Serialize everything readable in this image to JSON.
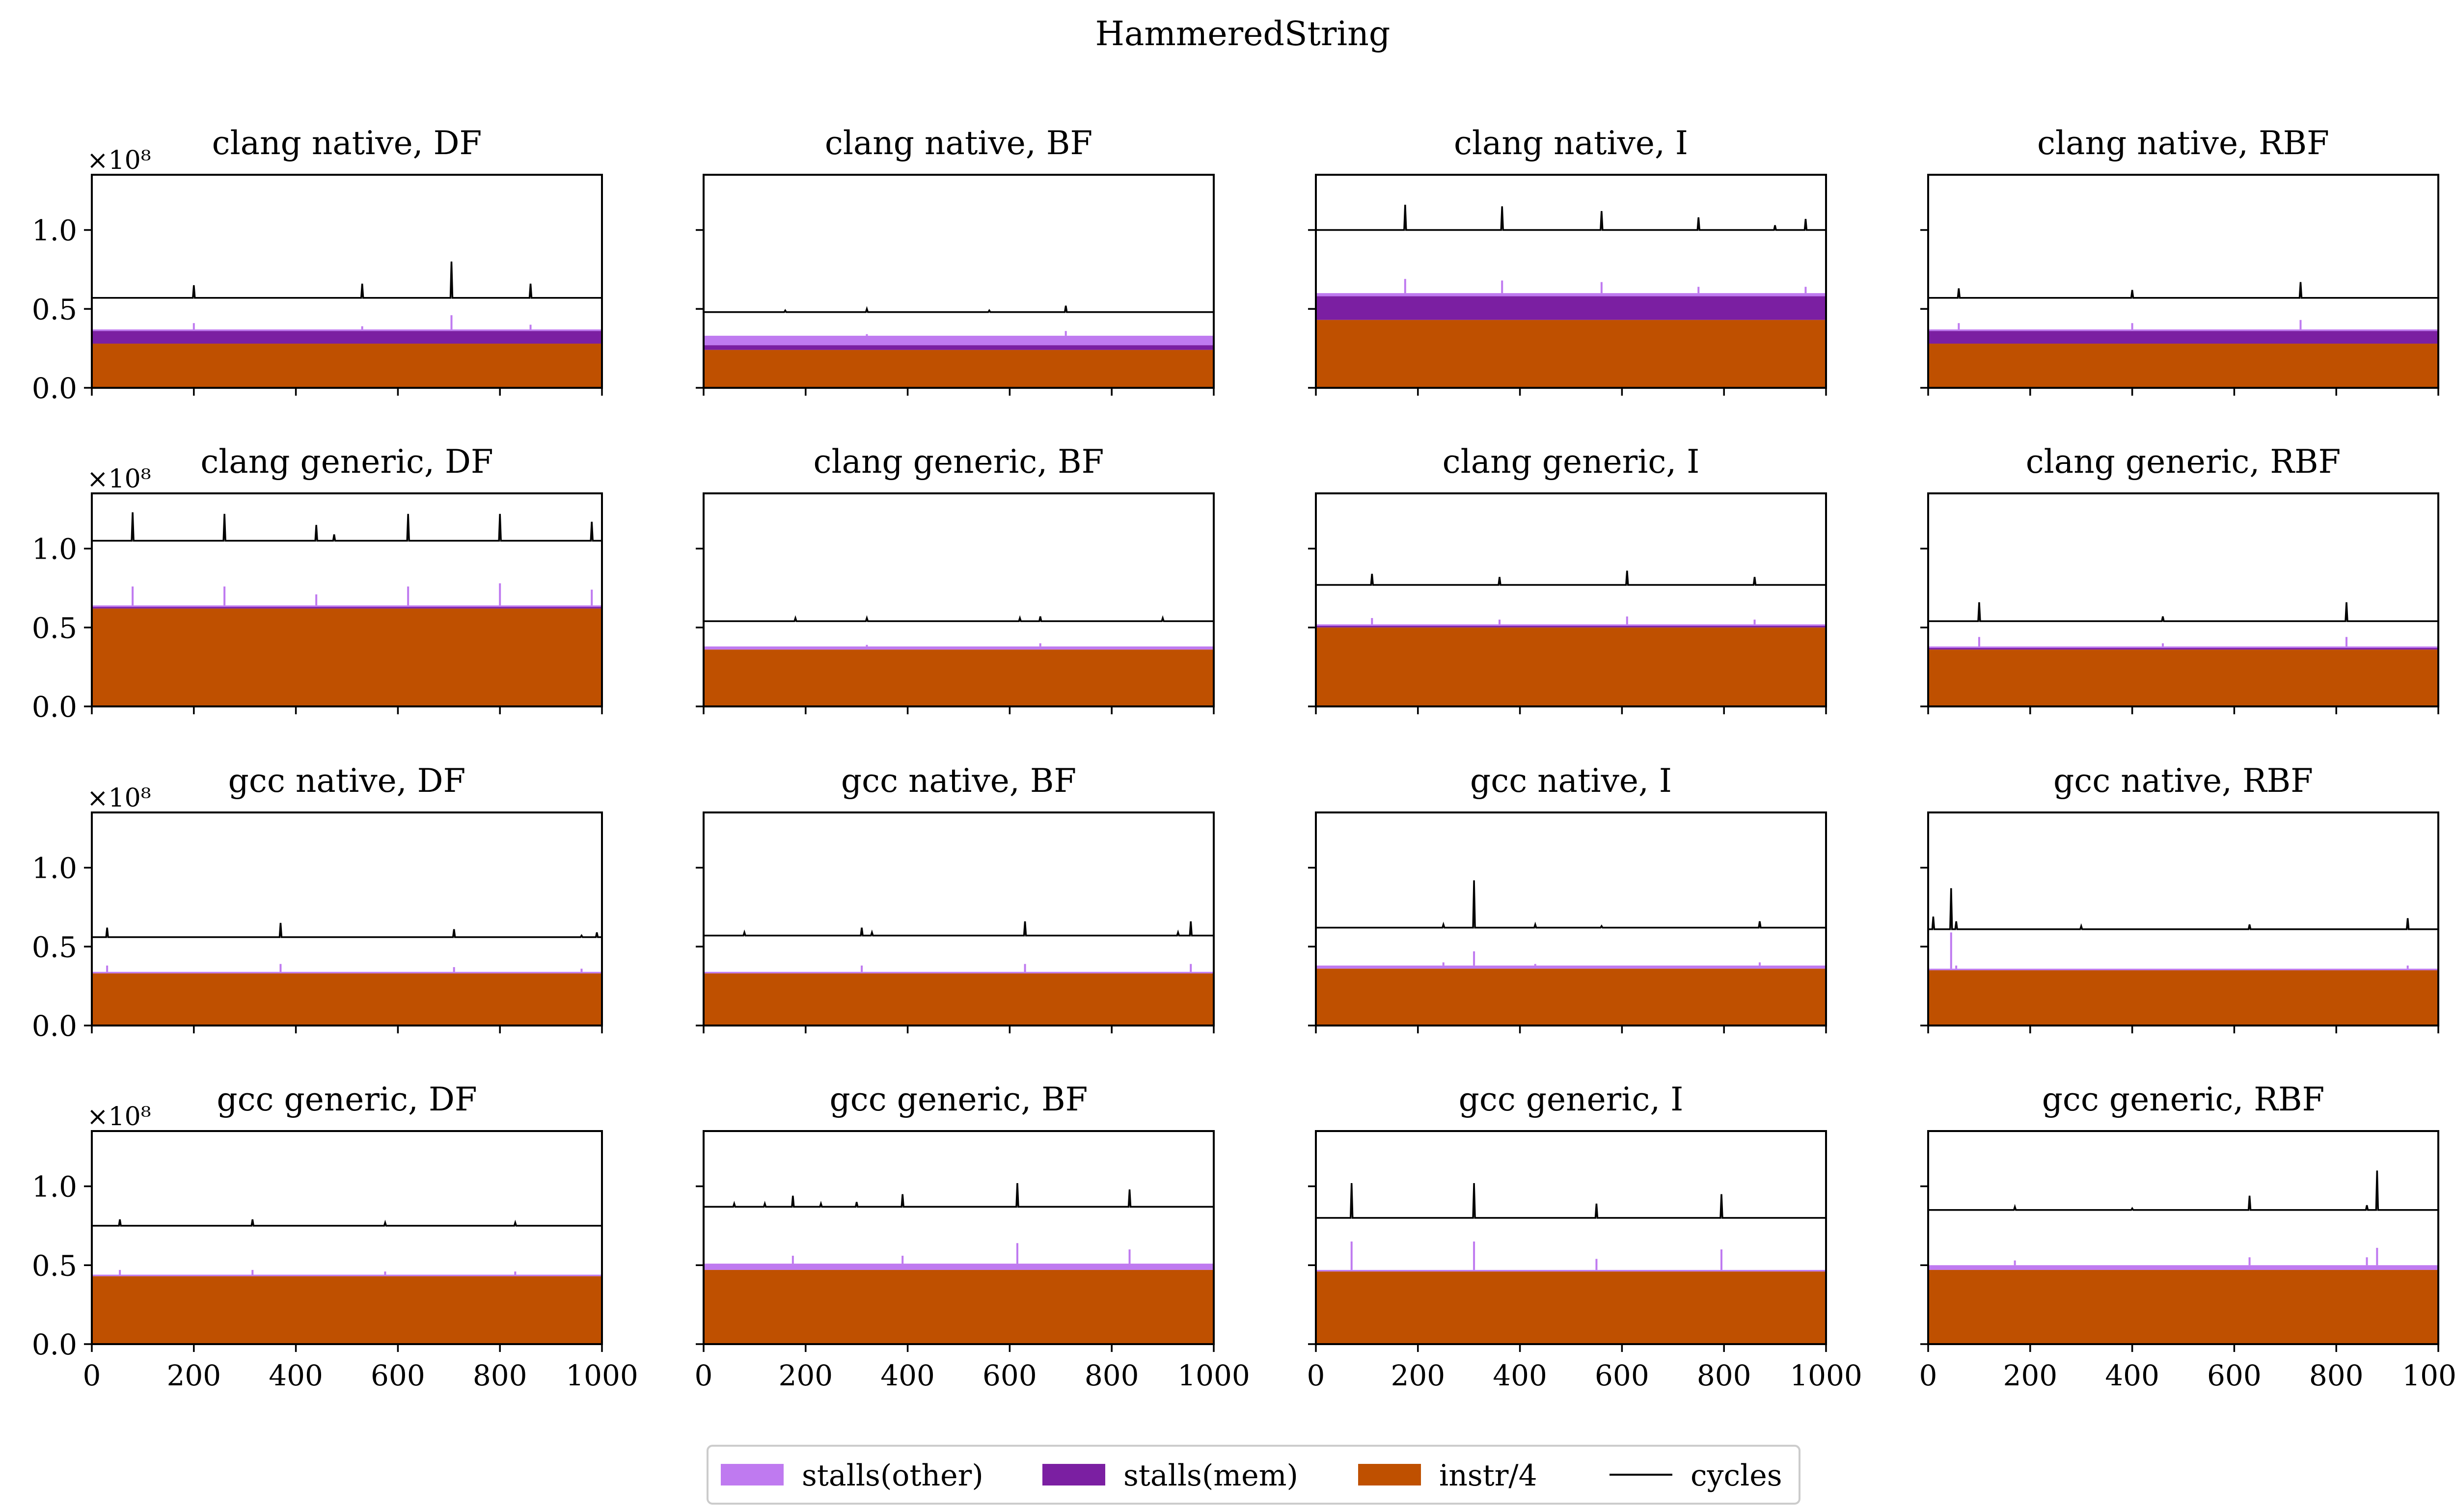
{
  "figure": {
    "title": "HammeredString",
    "exponent_label": "×10⁸",
    "x_ticks": [
      0,
      200,
      400,
      600,
      800,
      1000
    ],
    "y_ticks": [
      0.0,
      0.5,
      1.0
    ],
    "y_tick_labels": [
      "0.0",
      "0.5",
      "1.0"
    ],
    "xlim": [
      0,
      1000
    ],
    "ylim": [
      0,
      1.35
    ],
    "y_unit_multiplier": 100000000,
    "colors": {
      "stalls_other": "#bf7af0",
      "stalls_mem": "#7b1fa2",
      "instr": "#bf5000",
      "cycles": "#000000"
    },
    "legend": {
      "placement": "bottom-center",
      "items": [
        {
          "key": "stalls_other",
          "label": "stalls(other)",
          "kind": "patch"
        },
        {
          "key": "stalls_mem",
          "label": "stalls(mem)",
          "kind": "patch"
        },
        {
          "key": "instr",
          "label": "instr/4",
          "kind": "patch"
        },
        {
          "key": "cycles",
          "label": "cycles",
          "kind": "line"
        }
      ]
    }
  },
  "chart_data": [
    {
      "type": "area",
      "title": "clang native, DF",
      "row": 0,
      "col": 0,
      "instr_div4": 0.28,
      "stalls_mem": 0.08,
      "stalls_other": 0.01,
      "cycles": 0.57,
      "cycle_spikes": [
        [
          200,
          0.65
        ],
        [
          530,
          0.66
        ],
        [
          705,
          0.8
        ],
        [
          860,
          0.66
        ]
      ],
      "stall_spikes": [
        [
          200,
          0.41
        ],
        [
          530,
          0.39
        ],
        [
          705,
          0.46
        ],
        [
          860,
          0.4
        ]
      ]
    },
    {
      "type": "area",
      "title": "clang native, BF",
      "row": 0,
      "col": 1,
      "instr_div4": 0.24,
      "stalls_mem": 0.03,
      "stalls_other": 0.06,
      "cycles": 0.48,
      "cycle_spikes": [
        [
          160,
          0.49
        ],
        [
          320,
          0.5
        ],
        [
          560,
          0.49
        ],
        [
          710,
          0.52
        ]
      ],
      "stall_spikes": [
        [
          320,
          0.34
        ],
        [
          710,
          0.36
        ]
      ]
    },
    {
      "type": "area",
      "title": "clang native, I",
      "row": 0,
      "col": 2,
      "instr_div4": 0.43,
      "stalls_mem": 0.15,
      "stalls_other": 0.02,
      "cycles": 1.0,
      "cycle_spikes": [
        [
          175,
          1.16
        ],
        [
          365,
          1.15
        ],
        [
          560,
          1.12
        ],
        [
          750,
          1.08
        ],
        [
          900,
          1.03
        ],
        [
          960,
          1.07
        ]
      ],
      "stall_spikes": [
        [
          175,
          0.69
        ],
        [
          365,
          0.68
        ],
        [
          560,
          0.67
        ],
        [
          750,
          0.64
        ],
        [
          960,
          0.64
        ]
      ]
    },
    {
      "type": "area",
      "title": "clang native, RBF",
      "row": 0,
      "col": 3,
      "instr_div4": 0.28,
      "stalls_mem": 0.08,
      "stalls_other": 0.01,
      "cycles": 0.57,
      "cycle_spikes": [
        [
          60,
          0.63
        ],
        [
          400,
          0.62
        ],
        [
          730,
          0.67
        ]
      ],
      "stall_spikes": [
        [
          60,
          0.41
        ],
        [
          400,
          0.41
        ],
        [
          730,
          0.43
        ]
      ]
    },
    {
      "type": "area",
      "title": "clang generic, DF",
      "row": 1,
      "col": 0,
      "instr_div4": 0.62,
      "stalls_mem": 0.01,
      "stalls_other": 0.01,
      "cycles": 1.05,
      "cycle_spikes": [
        [
          80,
          1.23
        ],
        [
          260,
          1.22
        ],
        [
          440,
          1.15
        ],
        [
          475,
          1.09
        ],
        [
          620,
          1.22
        ],
        [
          800,
          1.22
        ],
        [
          980,
          1.17
        ]
      ],
      "stall_spikes": [
        [
          80,
          0.76
        ],
        [
          260,
          0.76
        ],
        [
          440,
          0.71
        ],
        [
          620,
          0.76
        ],
        [
          800,
          0.78
        ],
        [
          980,
          0.74
        ]
      ]
    },
    {
      "type": "area",
      "title": "clang generic, BF",
      "row": 1,
      "col": 1,
      "instr_div4": 0.36,
      "stalls_mem": 0.0,
      "stalls_other": 0.02,
      "cycles": 0.54,
      "cycle_spikes": [
        [
          180,
          0.56
        ],
        [
          320,
          0.56
        ],
        [
          620,
          0.56
        ],
        [
          660,
          0.57
        ],
        [
          900,
          0.56
        ]
      ],
      "stall_spikes": [
        [
          320,
          0.39
        ],
        [
          660,
          0.4
        ]
      ]
    },
    {
      "type": "area",
      "title": "clang generic, I",
      "row": 1,
      "col": 2,
      "instr_div4": 0.5,
      "stalls_mem": 0.01,
      "stalls_other": 0.01,
      "cycles": 0.77,
      "cycle_spikes": [
        [
          110,
          0.84
        ],
        [
          360,
          0.82
        ],
        [
          610,
          0.86
        ],
        [
          860,
          0.82
        ]
      ],
      "stall_spikes": [
        [
          110,
          0.56
        ],
        [
          360,
          0.55
        ],
        [
          610,
          0.57
        ],
        [
          860,
          0.55
        ]
      ]
    },
    {
      "type": "area",
      "title": "clang generic, RBF",
      "row": 1,
      "col": 3,
      "instr_div4": 0.36,
      "stalls_mem": 0.01,
      "stalls_other": 0.01,
      "cycles": 0.54,
      "cycle_spikes": [
        [
          100,
          0.66
        ],
        [
          460,
          0.57
        ],
        [
          820,
          0.66
        ]
      ],
      "stall_spikes": [
        [
          100,
          0.44
        ],
        [
          460,
          0.4
        ],
        [
          820,
          0.44
        ]
      ]
    },
    {
      "type": "area",
      "title": "gcc native, DF",
      "row": 2,
      "col": 0,
      "instr_div4": 0.33,
      "stalls_mem": 0.0,
      "stalls_other": 0.01,
      "cycles": 0.56,
      "cycle_spikes": [
        [
          30,
          0.62
        ],
        [
          370,
          0.65
        ],
        [
          710,
          0.61
        ],
        [
          960,
          0.57
        ],
        [
          990,
          0.59
        ]
      ],
      "stall_spikes": [
        [
          30,
          0.38
        ],
        [
          370,
          0.39
        ],
        [
          710,
          0.37
        ],
        [
          960,
          0.36
        ]
      ]
    },
    {
      "type": "area",
      "title": "gcc native, BF",
      "row": 2,
      "col": 1,
      "instr_div4": 0.33,
      "stalls_mem": 0.0,
      "stalls_other": 0.01,
      "cycles": 0.57,
      "cycle_spikes": [
        [
          80,
          0.59
        ],
        [
          310,
          0.62
        ],
        [
          330,
          0.59
        ],
        [
          630,
          0.66
        ],
        [
          930,
          0.59
        ],
        [
          955,
          0.66
        ]
      ],
      "stall_spikes": [
        [
          310,
          0.38
        ],
        [
          630,
          0.39
        ],
        [
          955,
          0.39
        ]
      ]
    },
    {
      "type": "area",
      "title": "gcc native, I",
      "row": 2,
      "col": 2,
      "instr_div4": 0.36,
      "stalls_mem": 0.0,
      "stalls_other": 0.02,
      "cycles": 0.62,
      "cycle_spikes": [
        [
          250,
          0.64
        ],
        [
          310,
          0.92
        ],
        [
          430,
          0.64
        ],
        [
          560,
          0.63
        ],
        [
          870,
          0.66
        ]
      ],
      "stall_spikes": [
        [
          250,
          0.4
        ],
        [
          310,
          0.47
        ],
        [
          430,
          0.39
        ],
        [
          870,
          0.4
        ]
      ]
    },
    {
      "type": "area",
      "title": "gcc native, RBF",
      "row": 2,
      "col": 3,
      "instr_div4": 0.35,
      "stalls_mem": 0.0,
      "stalls_other": 0.01,
      "cycles": 0.61,
      "cycle_spikes": [
        [
          10,
          0.69
        ],
        [
          45,
          0.87
        ],
        [
          55,
          0.66
        ],
        [
          300,
          0.63
        ],
        [
          630,
          0.64
        ],
        [
          940,
          0.68
        ]
      ],
      "stall_spikes": [
        [
          45,
          0.59
        ],
        [
          55,
          0.38
        ],
        [
          940,
          0.38
        ]
      ]
    },
    {
      "type": "area",
      "title": "gcc generic, DF",
      "row": 3,
      "col": 0,
      "instr_div4": 0.43,
      "stalls_mem": 0.0,
      "stalls_other": 0.01,
      "cycles": 0.75,
      "cycle_spikes": [
        [
          55,
          0.79
        ],
        [
          315,
          0.79
        ],
        [
          575,
          0.77
        ],
        [
          830,
          0.77
        ]
      ],
      "stall_spikes": [
        [
          55,
          0.47
        ],
        [
          315,
          0.47
        ],
        [
          575,
          0.46
        ],
        [
          830,
          0.46
        ]
      ]
    },
    {
      "type": "area",
      "title": "gcc generic, BF",
      "row": 3,
      "col": 1,
      "instr_div4": 0.47,
      "stalls_mem": 0.0,
      "stalls_other": 0.04,
      "cycles": 0.87,
      "cycle_spikes": [
        [
          60,
          0.89
        ],
        [
          120,
          0.89
        ],
        [
          175,
          0.94
        ],
        [
          230,
          0.89
        ],
        [
          300,
          0.9
        ],
        [
          390,
          0.95
        ],
        [
          615,
          1.02
        ],
        [
          835,
          0.98
        ]
      ],
      "stall_spikes": [
        [
          175,
          0.56
        ],
        [
          390,
          0.56
        ],
        [
          615,
          0.64
        ],
        [
          835,
          0.6
        ]
      ]
    },
    {
      "type": "area",
      "title": "gcc generic, I",
      "row": 3,
      "col": 2,
      "instr_div4": 0.46,
      "stalls_mem": 0.0,
      "stalls_other": 0.01,
      "cycles": 0.8,
      "cycle_spikes": [
        [
          70,
          1.02
        ],
        [
          310,
          1.02
        ],
        [
          550,
          0.89
        ],
        [
          795,
          0.95
        ]
      ],
      "stall_spikes": [
        [
          70,
          0.65
        ],
        [
          310,
          0.65
        ],
        [
          550,
          0.54
        ],
        [
          795,
          0.6
        ]
      ]
    },
    {
      "type": "area",
      "title": "gcc generic, RBF",
      "row": 3,
      "col": 3,
      "instr_div4": 0.47,
      "stalls_mem": 0.0,
      "stalls_other": 0.03,
      "cycles": 0.85,
      "cycle_spikes": [
        [
          170,
          0.87
        ],
        [
          400,
          0.86
        ],
        [
          630,
          0.94
        ],
        [
          860,
          0.88
        ],
        [
          880,
          1.1
        ]
      ],
      "stall_spikes": [
        [
          170,
          0.53
        ],
        [
          630,
          0.55
        ],
        [
          860,
          0.55
        ],
        [
          880,
          0.61
        ]
      ]
    }
  ]
}
